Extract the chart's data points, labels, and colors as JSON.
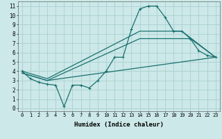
{
  "xlabel": "Humidex (Indice chaleur)",
  "xlim": [
    -0.5,
    23.5
  ],
  "ylim": [
    -0.3,
    11.5
  ],
  "xticks": [
    0,
    1,
    2,
    3,
    4,
    5,
    6,
    7,
    8,
    9,
    10,
    11,
    12,
    13,
    14,
    15,
    16,
    17,
    18,
    19,
    20,
    21,
    22,
    23
  ],
  "yticks": [
    0,
    1,
    2,
    3,
    4,
    5,
    6,
    7,
    8,
    9,
    10,
    11
  ],
  "bg_color": "#cce8e8",
  "grid_color": "#aacfcf",
  "line_color": "#1a7070",
  "lines": [
    {
      "x": [
        0,
        1,
        2,
        3,
        4,
        5,
        6,
        7,
        8,
        9,
        10,
        11,
        12,
        13,
        14,
        15,
        16,
        17,
        18,
        19,
        20,
        21,
        22,
        23
      ],
      "y": [
        4.0,
        3.2,
        2.8,
        2.6,
        2.5,
        0.2,
        2.5,
        2.5,
        2.2,
        3.0,
        4.0,
        5.5,
        5.5,
        8.5,
        10.7,
        11.0,
        11.0,
        9.8,
        8.3,
        8.3,
        7.5,
        6.2,
        5.7,
        5.5
      ],
      "marker": "+"
    },
    {
      "x": [
        0,
        3,
        14,
        19,
        23
      ],
      "y": [
        4.0,
        3.2,
        8.3,
        8.3,
        5.5
      ],
      "marker": null
    },
    {
      "x": [
        0,
        3,
        14,
        20,
        23
      ],
      "y": [
        3.8,
        3.0,
        7.5,
        7.5,
        5.5
      ],
      "marker": null
    },
    {
      "x": [
        0,
        3,
        23
      ],
      "y": [
        3.8,
        3.0,
        5.5
      ],
      "marker": null
    }
  ]
}
